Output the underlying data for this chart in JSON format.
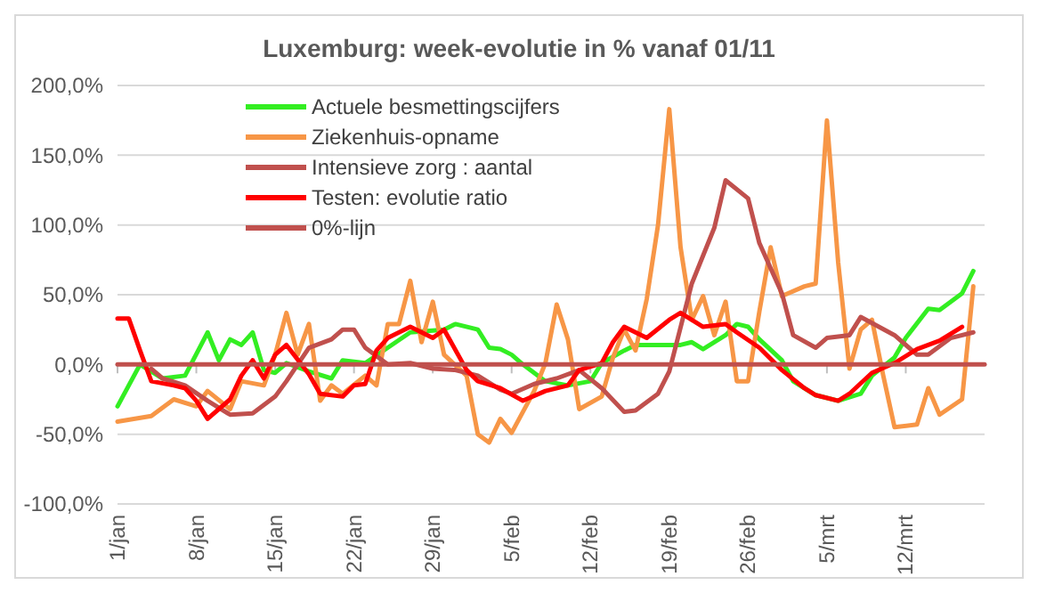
{
  "chart_data": {
    "type": "line",
    "title": "Luxemburg: week-evolutie in %  vanaf 01/11",
    "xlim": [
      "--01-01",
      "--03-19"
    ],
    "xticks": [
      {
        "value": "--01-01",
        "label": "1/jan"
      },
      {
        "value": "--01-08",
        "label": "8/jan"
      },
      {
        "value": "--01-15",
        "label": "15/jan"
      },
      {
        "value": "--01-22",
        "label": "22/jan"
      },
      {
        "value": "--01-29",
        "label": "29/jan"
      },
      {
        "value": "--02-05",
        "label": "5/feb"
      },
      {
        "value": "--02-12",
        "label": "12/feb"
      },
      {
        "value": "--02-19",
        "label": "19/feb"
      },
      {
        "value": "--02-26",
        "label": "26/feb"
      },
      {
        "value": "--03-05",
        "label": "5/mrt"
      },
      {
        "value": "--03-12",
        "label": "12/mrt"
      }
    ],
    "ylim": [
      -100,
      200
    ],
    "yticks": [
      {
        "value": -100,
        "label": "-100,0%"
      },
      {
        "value": -50,
        "label": "-50,0%"
      },
      {
        "value": 0,
        "label": "0,0%"
      },
      {
        "value": 50,
        "label": "50,0%"
      },
      {
        "value": 100,
        "label": "100,0%"
      },
      {
        "value": 150,
        "label": "150,0%"
      },
      {
        "value": 200,
        "label": "200,0%"
      }
    ],
    "grid": "y",
    "legend": "top left",
    "line_style": "solid",
    "series": [
      {
        "name": "Actuele besmettingscijfers",
        "color": "#33ee22",
        "x": [
          "--01-01",
          "--01-03",
          "--01-05",
          "--01-07",
          "--01-09",
          "--01-10",
          "--01-11",
          "--01-12",
          "--01-13",
          "--01-14",
          "--01-15",
          "--01-16",
          "--01-18",
          "--01-20",
          "--01-21",
          "--01-23",
          "--01-25",
          "--01-27",
          "--01-30",
          "--01-31",
          "--02-02",
          "--02-03",
          "--02-04",
          "--02-05",
          "--02-06",
          "--02-08",
          "--02-10",
          "--02-12",
          "--02-13",
          "--02-15",
          "--02-16",
          "--02-20",
          "--02-21",
          "--02-22",
          "--02-24",
          "--02-25",
          "--02-26",
          "--02-27",
          "--03-01",
          "--03-02",
          "--03-04",
          "--03-06",
          "--03-08",
          "--03-09",
          "--03-11",
          "--03-12",
          "--03-14",
          "--03-15",
          "--03-17",
          "--03-18"
        ],
        "values": [
          -30,
          0,
          -10,
          -8,
          23,
          3,
          18,
          14,
          23,
          -4,
          -6,
          1,
          -5,
          -10,
          3,
          1,
          12,
          23,
          25,
          29,
          25,
          12,
          11,
          7,
          0,
          -12,
          -15,
          -12,
          1,
          10,
          14,
          14,
          16,
          11,
          21,
          29,
          27,
          18,
          3,
          -12,
          -22,
          -26,
          -21,
          -8,
          5,
          19,
          40,
          39,
          51,
          67
        ]
      },
      {
        "name": "Ziekenhuis-opname",
        "color": "#f79646",
        "x": [
          "--01-01",
          "--01-04",
          "--01-06",
          "--01-08",
          "--01-09",
          "--01-11",
          "--01-12",
          "--01-14",
          "--01-15",
          "--01-16",
          "--01-17",
          "--01-18",
          "--01-19",
          "--01-20",
          "--01-21",
          "--01-23",
          "--01-24",
          "--01-25",
          "--01-26",
          "--01-27",
          "--01-28",
          "--01-29",
          "--01-30",
          "--02-01",
          "--02-02",
          "--02-03",
          "--02-04",
          "--02-05",
          "--02-07",
          "--02-08",
          "--02-09",
          "--02-10",
          "--02-11",
          "--02-13",
          "--02-14",
          "--02-15",
          "--02-16",
          "--02-17",
          "--02-18",
          "--02-19",
          "--02-20",
          "--02-21",
          "--02-22",
          "--02-23",
          "--02-24",
          "--02-25",
          "--02-26",
          "--02-27",
          "--02-28",
          "--03-01",
          "--03-03",
          "--03-04",
          "--03-05",
          "--03-06",
          "--03-07",
          "--03-08",
          "--03-09",
          "--03-10",
          "--03-11",
          "--03-13",
          "--03-14",
          "--03-15",
          "--03-17",
          "--03-18"
        ],
        "values": [
          -41,
          -37,
          -25,
          -30,
          -19,
          -32,
          -12,
          -15,
          7,
          37,
          7,
          29,
          -26,
          -15,
          -21,
          -8,
          -15,
          29,
          29,
          60,
          16,
          45,
          7,
          -8,
          -50,
          -56,
          -39,
          -49,
          -19,
          1,
          43,
          18,
          -32,
          -23,
          5,
          25,
          10,
          47,
          100,
          183,
          84,
          32,
          49,
          21,
          45,
          -12,
          -12,
          38,
          84,
          49,
          56,
          58,
          175,
          73,
          -3,
          25,
          32,
          -8,
          -45,
          -43,
          -17,
          -36,
          -25,
          56
        ]
      },
      {
        "name": "Intensieve zorg : aantal",
        "color": "#c0504d",
        "x": [
          "--01-04",
          "--01-05",
          "--01-07",
          "--01-09",
          "--01-11",
          "--01-13",
          "--01-15",
          "--01-16",
          "--01-18",
          "--01-20",
          "--01-21",
          "--01-22",
          "--01-23",
          "--01-25",
          "--01-27",
          "--01-29",
          "--01-31",
          "--02-02",
          "--02-04",
          "--02-05",
          "--02-07",
          "--02-09",
          "--02-11",
          "--02-13",
          "--02-15",
          "--02-16",
          "--02-18",
          "--02-19",
          "--02-21",
          "--02-23",
          "--02-24",
          "--02-26",
          "--02-27",
          "--03-01",
          "--03-02",
          "--03-04",
          "--03-05",
          "--03-07",
          "--03-08",
          "--03-11",
          "--03-13",
          "--03-14",
          "--03-16",
          "--03-18"
        ],
        "values": [
          -3,
          -10,
          -15,
          -26,
          -36,
          -35,
          -23,
          -12,
          12,
          18,
          25,
          25,
          12,
          0,
          1,
          -3,
          -4,
          -8,
          -18,
          -21,
          -14,
          -10,
          -4,
          -17,
          -34,
          -33,
          -21,
          -5,
          58,
          98,
          132,
          119,
          87,
          51,
          21,
          12,
          19,
          21,
          34,
          21,
          7,
          7,
          19,
          23
        ]
      },
      {
        "name": "Testen: evolutie ratio",
        "color": "#ff0000",
        "x": [
          "--01-01",
          "--01-02",
          "--01-03",
          "--01-04",
          "--01-06",
          "--01-07",
          "--01-08",
          "--01-09",
          "--01-11",
          "--01-12",
          "--01-13",
          "--01-14",
          "--01-15",
          "--01-16",
          "--01-18",
          "--01-19",
          "--01-21",
          "--01-22",
          "--01-23",
          "--01-24",
          "--01-25",
          "--01-27",
          "--01-29",
          "--01-30",
          "--02-01",
          "--02-02",
          "--02-04",
          "--02-06",
          "--02-08",
          "--02-10",
          "--02-11",
          "--02-13",
          "--02-14",
          "--02-15",
          "--02-16",
          "--02-17",
          "--02-19",
          "--02-20",
          "--02-22",
          "--02-24",
          "--02-25",
          "--02-27",
          "--03-01",
          "--03-03",
          "--03-04",
          "--03-06",
          "--03-07",
          "--03-09",
          "--03-11",
          "--03-13",
          "--03-15",
          "--03-17"
        ],
        "values": [
          33,
          33,
          10,
          -12,
          -15,
          -17,
          -26,
          -39,
          -25,
          -8,
          3,
          -10,
          7,
          14,
          -7,
          -21,
          -23,
          -15,
          -14,
          10,
          19,
          27,
          19,
          25,
          -4,
          -12,
          -17,
          -26,
          -19,
          -15,
          -4,
          1,
          16,
          27,
          23,
          19,
          32,
          37,
          27,
          29,
          23,
          12,
          -4,
          -17,
          -22,
          -26,
          -21,
          -6,
          1,
          11,
          17,
          27
        ]
      },
      {
        "name": "0%-lijn",
        "color": "#c0504d",
        "x": [
          "--01-01",
          "--03-19"
        ],
        "values": [
          0,
          0
        ]
      }
    ]
  }
}
